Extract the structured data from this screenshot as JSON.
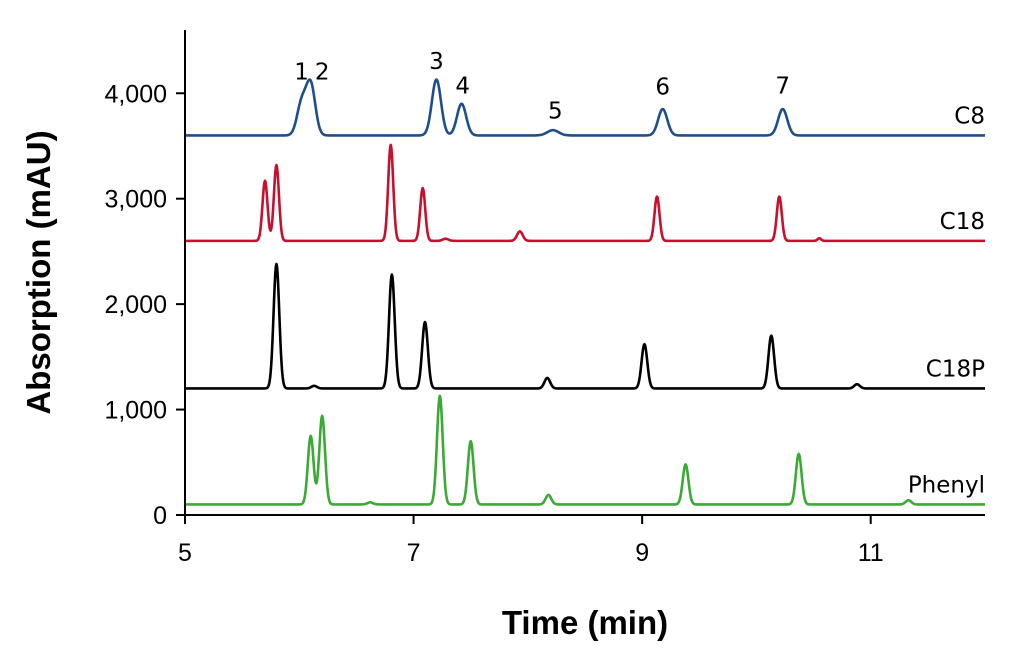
{
  "chart_data": {
    "type": "line",
    "title": "",
    "xlabel": "Time (min)",
    "ylabel": "Absorption (mAU)",
    "xlim": [
      5,
      12
    ],
    "ylim": [
      0,
      4600
    ],
    "xticks": [
      5,
      7,
      9,
      11
    ],
    "xtick_labels": [
      "5",
      "7",
      "9",
      "11"
    ],
    "yticks": [
      0,
      1000,
      2000,
      3000,
      4000
    ],
    "ytick_labels": [
      "0",
      "1,000",
      "2,000",
      "3,000",
      "4,000"
    ],
    "grid": false,
    "legend": "none",
    "series": [
      {
        "name": "C8",
        "color": "#1f4e8c",
        "baseline": 3600,
        "peaks": [
          {
            "x": 6.02,
            "h": 300,
            "w": 0.04
          },
          {
            "x": 6.1,
            "h": 480,
            "w": 0.04
          },
          {
            "x": 7.2,
            "h": 530,
            "w": 0.04
          },
          {
            "x": 7.42,
            "h": 300,
            "w": 0.04
          },
          {
            "x": 8.22,
            "h": 50,
            "w": 0.05
          },
          {
            "x": 9.18,
            "h": 250,
            "w": 0.04
          },
          {
            "x": 10.23,
            "h": 250,
            "w": 0.04
          }
        ]
      },
      {
        "name": "C18",
        "color": "#c8102e",
        "baseline": 2600,
        "peaks": [
          {
            "x": 5.7,
            "h": 570,
            "w": 0.022
          },
          {
            "x": 5.8,
            "h": 720,
            "w": 0.022
          },
          {
            "x": 6.8,
            "h": 910,
            "w": 0.022
          },
          {
            "x": 7.08,
            "h": 500,
            "w": 0.022
          },
          {
            "x": 7.28,
            "h": 20,
            "w": 0.025
          },
          {
            "x": 7.93,
            "h": 90,
            "w": 0.025
          },
          {
            "x": 9.13,
            "h": 420,
            "w": 0.022
          },
          {
            "x": 10.2,
            "h": 420,
            "w": 0.022
          },
          {
            "x": 10.55,
            "h": 25,
            "w": 0.015
          }
        ]
      },
      {
        "name": "C18P",
        "color": "#000000",
        "baseline": 1200,
        "peaks": [
          {
            "x": 5.8,
            "h": 1180,
            "w": 0.025
          },
          {
            "x": 6.13,
            "h": 25,
            "w": 0.025
          },
          {
            "x": 6.81,
            "h": 1080,
            "w": 0.025
          },
          {
            "x": 7.1,
            "h": 630,
            "w": 0.025
          },
          {
            "x": 8.17,
            "h": 100,
            "w": 0.025
          },
          {
            "x": 9.02,
            "h": 420,
            "w": 0.025
          },
          {
            "x": 10.13,
            "h": 500,
            "w": 0.025
          },
          {
            "x": 10.88,
            "h": 40,
            "w": 0.025
          }
        ]
      },
      {
        "name": "Phenyl",
        "color": "#3aaa35",
        "baseline": 100,
        "peaks": [
          {
            "x": 6.1,
            "h": 650,
            "w": 0.025
          },
          {
            "x": 6.2,
            "h": 840,
            "w": 0.025
          },
          {
            "x": 6.62,
            "h": 20,
            "w": 0.025
          },
          {
            "x": 7.23,
            "h": 1030,
            "w": 0.025
          },
          {
            "x": 7.5,
            "h": 600,
            "w": 0.025
          },
          {
            "x": 8.18,
            "h": 90,
            "w": 0.025
          },
          {
            "x": 9.38,
            "h": 380,
            "w": 0.025
          },
          {
            "x": 10.37,
            "h": 480,
            "w": 0.025
          },
          {
            "x": 11.33,
            "h": 40,
            "w": 0.025
          }
        ]
      }
    ],
    "annotations": [
      {
        "text": "1",
        "x": 6.02,
        "y": 4130
      },
      {
        "text": "2",
        "x": 6.2,
        "y": 4130
      },
      {
        "text": "3",
        "x": 7.2,
        "y": 4230
      },
      {
        "text": "4",
        "x": 7.43,
        "y": 4000
      },
      {
        "text": "5",
        "x": 8.24,
        "y": 3760
      },
      {
        "text": "6",
        "x": 9.18,
        "y": 3990
      },
      {
        "text": "7",
        "x": 10.23,
        "y": 4000
      }
    ]
  }
}
